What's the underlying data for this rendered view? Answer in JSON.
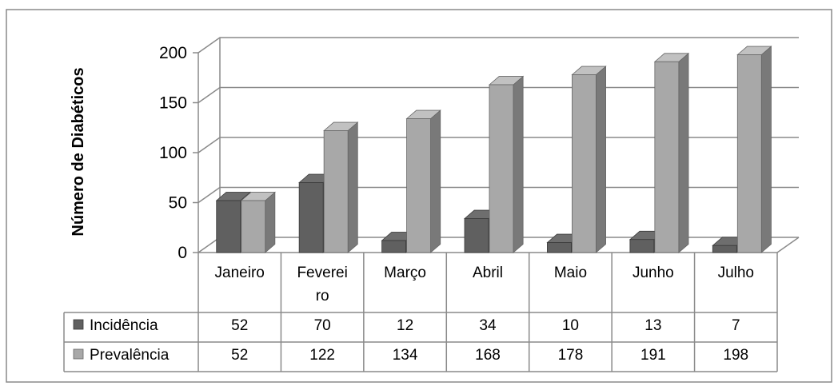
{
  "chart_data": {
    "type": "bar",
    "title": "",
    "xlabel": "",
    "ylabel": "Número de Diabéticos",
    "ylim": [
      0,
      200
    ],
    "yticks": [
      "0",
      "50",
      "100",
      "150",
      "200"
    ],
    "grid": true,
    "legend": "data-table-left",
    "categories": [
      "Janeiro",
      "Feverei ro",
      "Março",
      "Abril",
      "Maio",
      "Junho",
      "Julho"
    ],
    "category_lines": [
      [
        "Janeiro"
      ],
      [
        "Feverei",
        "ro"
      ],
      [
        "Março"
      ],
      [
        "Abril"
      ],
      [
        "Maio"
      ],
      [
        "Junho"
      ],
      [
        "Julho"
      ]
    ],
    "series": [
      {
        "name": "Incidência",
        "values": [
          52,
          70,
          12,
          34,
          10,
          13,
          7
        ],
        "labels": [
          "52",
          "70",
          "12",
          "34",
          "10",
          "13",
          "7"
        ],
        "color": "#606060"
      },
      {
        "name": "Prevalência",
        "values": [
          52,
          122,
          134,
          168,
          178,
          191,
          198
        ],
        "labels": [
          "52",
          "122",
          "134",
          "168",
          "178",
          "191",
          "198"
        ],
        "color": "#a8a8a8"
      }
    ]
  }
}
